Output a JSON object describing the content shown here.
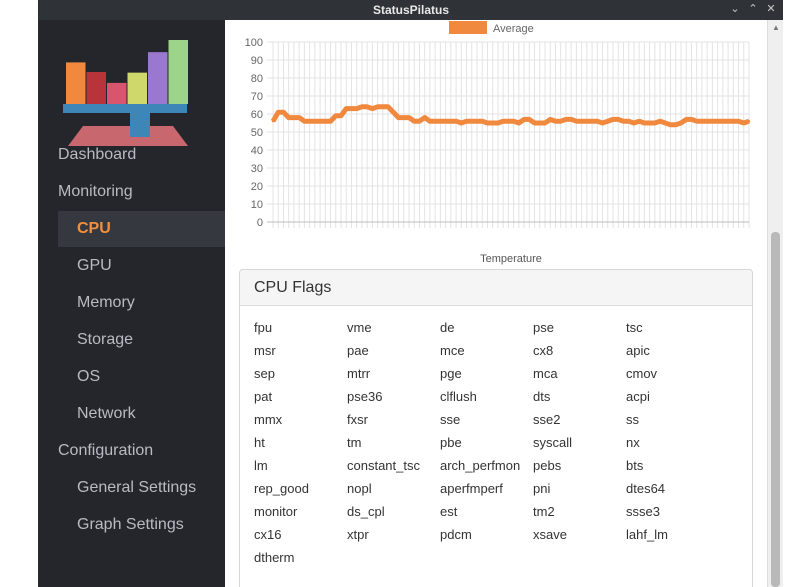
{
  "window": {
    "title": "StatusPilatus"
  },
  "sidebar": {
    "items": [
      {
        "label": "Dashboard",
        "level": "top"
      },
      {
        "label": "Monitoring",
        "level": "top"
      },
      {
        "label": "CPU",
        "level": "sub",
        "active": true
      },
      {
        "label": "GPU",
        "level": "sub"
      },
      {
        "label": "Memory",
        "level": "sub"
      },
      {
        "label": "Storage",
        "level": "sub"
      },
      {
        "label": "OS",
        "level": "sub"
      },
      {
        "label": "Network",
        "level": "sub"
      },
      {
        "label": "Configuration",
        "level": "top"
      },
      {
        "label": "General Settings",
        "level": "sub"
      },
      {
        "label": "Graph Settings",
        "level": "sub"
      }
    ]
  },
  "chart_data": {
    "type": "line",
    "xlabel": "Temperature",
    "ylim": [
      0,
      100
    ],
    "yticks": [
      0,
      10,
      20,
      30,
      40,
      50,
      60,
      70,
      80,
      90,
      100
    ],
    "grid": true,
    "legend_placement": "top-center",
    "series": [
      {
        "name": "Average",
        "color": "#f0883e",
        "values": [
          56,
          61,
          61,
          58,
          58,
          58,
          56,
          56,
          56,
          56,
          56,
          56,
          59,
          59,
          63,
          63,
          63,
          64,
          64,
          63,
          64,
          64,
          64,
          61,
          58,
          58,
          58,
          56,
          56,
          58,
          56,
          56,
          56,
          56,
          56,
          56,
          55,
          56,
          56,
          56,
          56,
          55,
          55,
          55,
          56,
          56,
          56,
          55,
          57,
          57,
          55,
          55,
          55,
          57,
          56,
          56,
          57,
          57,
          56,
          56,
          56,
          56,
          56,
          55,
          56,
          57,
          57,
          56,
          56,
          55,
          56,
          55,
          55,
          55,
          56,
          55,
          54,
          54,
          55,
          57,
          57,
          56,
          56,
          56,
          56,
          56,
          56,
          56,
          56,
          56,
          55,
          56
        ]
      }
    ]
  },
  "cpu_flags": {
    "title": "CPU Flags",
    "flags": [
      "fpu",
      "vme",
      "de",
      "pse",
      "tsc",
      "msr",
      "pae",
      "mce",
      "cx8",
      "apic",
      "sep",
      "mtrr",
      "pge",
      "mca",
      "cmov",
      "pat",
      "pse36",
      "clflush",
      "dts",
      "acpi",
      "mmx",
      "fxsr",
      "sse",
      "sse2",
      "ss",
      "ht",
      "tm",
      "pbe",
      "syscall",
      "nx",
      "lm",
      "constant_tsc",
      "arch_perfmon",
      "pebs",
      "bts",
      "rep_good",
      "nopl",
      "aperfmperf",
      "pni",
      "dtes64",
      "monitor",
      "ds_cpl",
      "est",
      "tm2",
      "ssse3",
      "cx16",
      "xtpr",
      "pdcm",
      "xsave",
      "lahf_lm",
      "dtherm"
    ]
  },
  "logo": {
    "bar_colors": [
      "#f0883e",
      "#b8333a",
      "#d9546e",
      "#cfd86a",
      "#9a78cf",
      "#9cd58a"
    ],
    "bar_levels": [
      0.65,
      0.5,
      0.33,
      0.49,
      0.81,
      1.0
    ],
    "beam_color": "#3f86b8",
    "base_color": "#c9676f"
  }
}
